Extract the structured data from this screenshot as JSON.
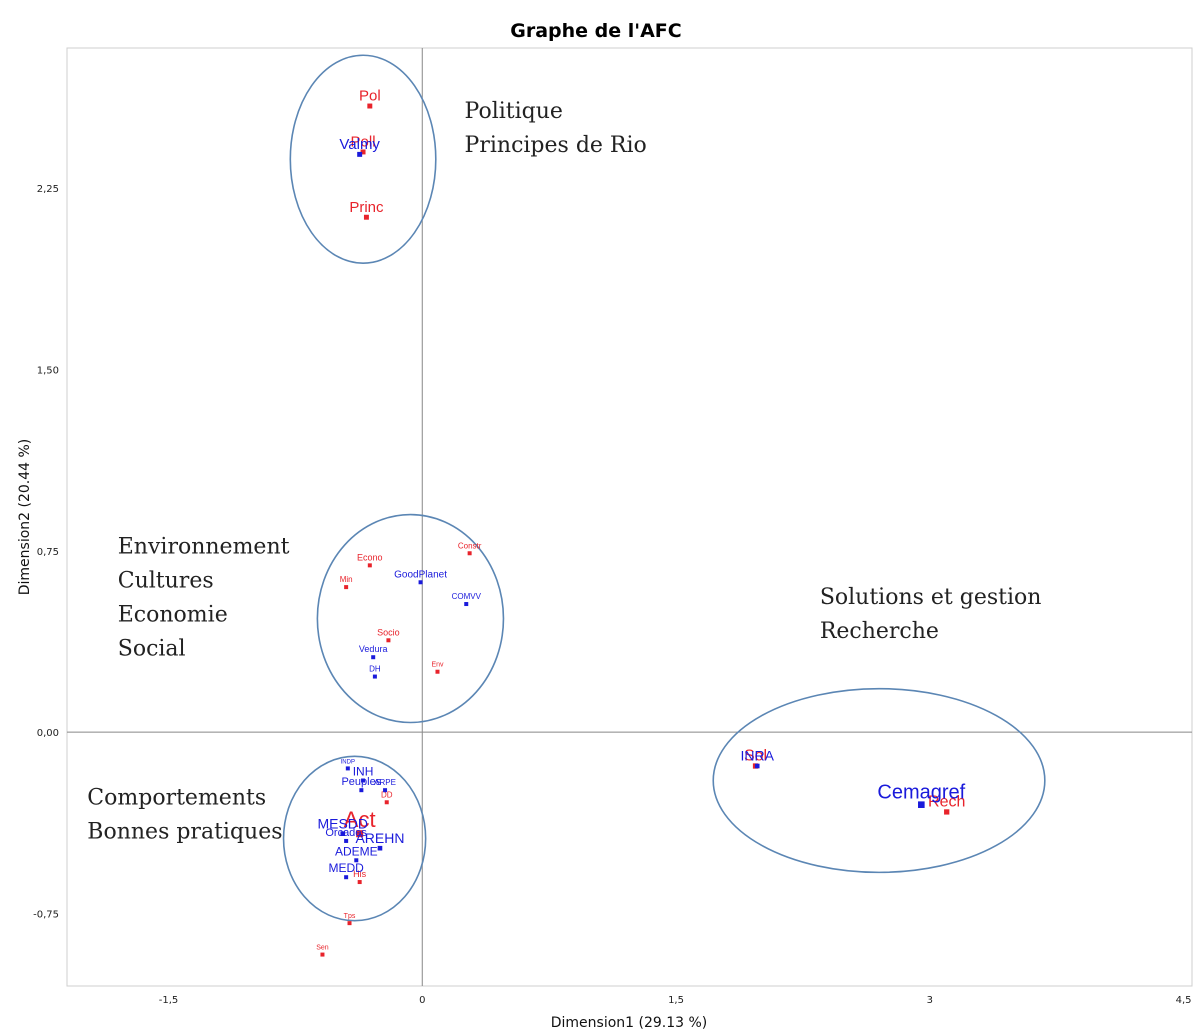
{
  "chart_data": {
    "type": "scatter",
    "title": "Graphe de l'AFC",
    "xlabel": "Dimension1 (29.13 %)",
    "ylabel": "Dimension2 (20.44 %)",
    "xlim": [
      -2.1,
      4.55
    ],
    "ylim": [
      -1.05,
      2.83
    ],
    "x_ticks": [
      {
        "value": -1.5,
        "label": "-1,5"
      },
      {
        "value": 0,
        "label": "0"
      },
      {
        "value": 1.5,
        "label": "1,5"
      },
      {
        "value": 3,
        "label": "3"
      },
      {
        "value": 4.5,
        "label": "4,5"
      }
    ],
    "y_ticks": [
      {
        "value": -0.75,
        "label": "-0,75"
      },
      {
        "value": 0,
        "label": "0,00"
      },
      {
        "value": 0.75,
        "label": "0,75"
      },
      {
        "value": 1.5,
        "label": "1,50"
      },
      {
        "value": 2.25,
        "label": "2,25"
      }
    ],
    "colors": {
      "rows": "#1a1adb",
      "cols": "#e8232b",
      "ellipse": "#5b86b4",
      "axis": "#888888"
    },
    "series": [
      {
        "color_key": "cols",
        "points": [
          {
            "label": "Pol",
            "x": -0.31,
            "y": 2.59,
            "size": 15
          },
          {
            "label": "Poll",
            "x": -0.35,
            "y": 2.4,
            "size": 15
          },
          {
            "label": "Princ",
            "x": -0.33,
            "y": 2.13,
            "size": 15
          },
          {
            "label": "Econo",
            "x": -0.31,
            "y": 0.69,
            "size": 9
          },
          {
            "label": "Constr",
            "x": 0.28,
            "y": 0.74,
            "size": 8
          },
          {
            "label": "Min",
            "x": -0.45,
            "y": 0.6,
            "size": 8
          },
          {
            "label": "Socio",
            "x": -0.2,
            "y": 0.38,
            "size": 9
          },
          {
            "label": "Env",
            "x": 0.09,
            "y": 0.25,
            "size": 7
          },
          {
            "label": "Sol",
            "x": 1.97,
            "y": -0.14,
            "size": 16
          },
          {
            "label": "Rech",
            "x": 3.1,
            "y": -0.33,
            "size": 16
          },
          {
            "label": "DD",
            "x": -0.21,
            "y": -0.29,
            "size": 8
          },
          {
            "label": "Act",
            "x": -0.37,
            "y": -0.42,
            "size": 22
          },
          {
            "label": "His",
            "x": -0.37,
            "y": -0.62,
            "size": 9
          },
          {
            "label": "Tps",
            "x": -0.43,
            "y": -0.79,
            "size": 7
          },
          {
            "label": "Sen",
            "x": -0.59,
            "y": -0.92,
            "size": 7
          }
        ]
      },
      {
        "color_key": "rows",
        "points": [
          {
            "label": "Valmy",
            "x": -0.37,
            "y": 2.39,
            "size": 15
          },
          {
            "label": "GoodPlanet",
            "x": -0.01,
            "y": 0.62,
            "size": 10
          },
          {
            "label": "COMVV",
            "x": 0.26,
            "y": 0.53,
            "size": 8
          },
          {
            "label": "Vedura",
            "x": -0.29,
            "y": 0.31,
            "size": 9
          },
          {
            "label": "DH",
            "x": -0.28,
            "y": 0.23,
            "size": 8
          },
          {
            "label": "INRA",
            "x": 1.98,
            "y": -0.14,
            "size": 14
          },
          {
            "label": "Cemagref",
            "x": 2.95,
            "y": -0.3,
            "size": 20
          },
          {
            "label": "INDP",
            "x": -0.44,
            "y": -0.15,
            "size": 6
          },
          {
            "label": "INH",
            "x": -0.35,
            "y": -0.2,
            "size": 12
          },
          {
            "label": "ARPE",
            "x": -0.22,
            "y": -0.24,
            "size": 8
          },
          {
            "label": "Peuples",
            "x": -0.36,
            "y": -0.24,
            "size": 11
          },
          {
            "label": "MESDD",
            "x": -0.47,
            "y": -0.42,
            "size": 14
          },
          {
            "label": "AREHN",
            "x": -0.25,
            "y": -0.48,
            "size": 14
          },
          {
            "label": "Orcades",
            "x": -0.45,
            "y": -0.45,
            "size": 11
          },
          {
            "label": "ADEME",
            "x": -0.39,
            "y": -0.53,
            "size": 12
          },
          {
            "label": "MEDD",
            "x": -0.45,
            "y": -0.6,
            "size": 12
          }
        ]
      }
    ],
    "ellipses": [
      {
        "cx": -0.35,
        "cy": 2.37,
        "rx": 0.43,
        "ry": 0.43
      },
      {
        "cx": -0.07,
        "cy": 0.47,
        "rx": 0.55,
        "ry": 0.43
      },
      {
        "cx": 2.7,
        "cy": -0.2,
        "rx": 0.98,
        "ry": 0.38
      },
      {
        "cx": -0.4,
        "cy": -0.44,
        "rx": 0.42,
        "ry": 0.34
      }
    ],
    "annotations": [
      {
        "lines": [
          "Politique",
          "Principes de Rio"
        ],
        "x": 0.25,
        "y": 2.54
      },
      {
        "lines": [
          "Environnement",
          "Cultures",
          "Economie",
          "Social"
        ],
        "x": -1.8,
        "y": 0.74
      },
      {
        "lines": [
          "Solutions et gestion",
          "Recherche"
        ],
        "x": 2.35,
        "y": 0.53
      },
      {
        "lines": [
          "Comportements",
          "Bonnes pratiques"
        ],
        "x": -1.98,
        "y": -0.3
      }
    ]
  }
}
